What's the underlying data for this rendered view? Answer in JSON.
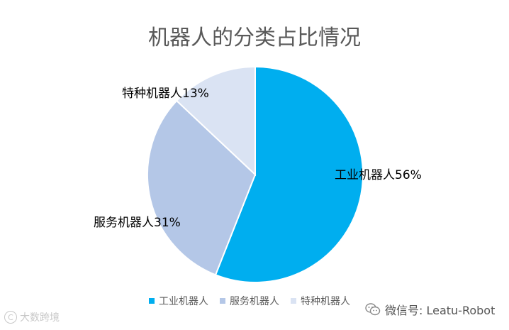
{
  "chart_data": {
    "type": "pie",
    "title": "机器人的分类占比情况",
    "slices": [
      {
        "name": "工业机器人",
        "value": 56,
        "label": "工业机器人56%",
        "color": "#00aeef"
      },
      {
        "name": "服务机器人",
        "value": 31,
        "label": "服务机器人31%",
        "color": "#b4c7e7"
      },
      {
        "name": "特种机器人",
        "value": 13,
        "label": "特种机器人13%",
        "color": "#dae3f3"
      }
    ],
    "legend": {
      "placement": "bottom",
      "items": [
        "工业机器人",
        "服务机器人",
        "特种机器人"
      ]
    }
  },
  "watermarks": {
    "left_text": "大数跨境",
    "left_logo": "C",
    "right_text": "微信号: Leatu-Robot",
    "right_icon": "wechat-icon"
  }
}
